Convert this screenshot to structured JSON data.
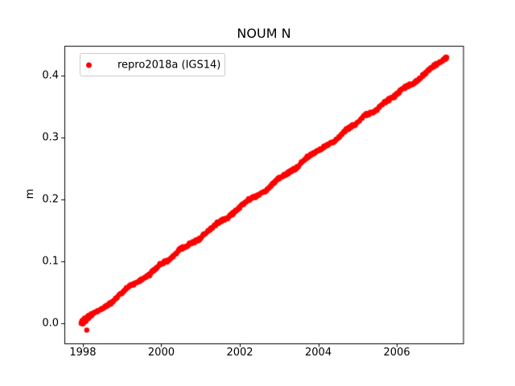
{
  "figure": {
    "background": "#ffffff",
    "frame_color": "#000000",
    "text_color": "#000000"
  },
  "chart_data": {
    "type": "scatter",
    "title": "NOUM N",
    "xlabel": "",
    "ylabel": "m",
    "legend": {
      "label": "repro2018a (IGS14)",
      "marker": "dot-icon",
      "marker_color": "#ff0000",
      "position": "upper-left",
      "border_color": "#cccccc"
    },
    "axes": {
      "xlim": [
        1997.53,
        2007.7
      ],
      "ylim": [
        -0.033,
        0.447
      ],
      "xticks": [
        1998,
        2000,
        2002,
        2004,
        2006
      ],
      "xtick_labels": [
        "1998",
        "2000",
        "2002",
        "2004",
        "2006"
      ],
      "yticks": [
        0.0,
        0.1,
        0.2,
        0.3,
        0.4
      ],
      "ytick_labels": [
        "0.0",
        "0.1",
        "0.2",
        "0.3",
        "0.4"
      ],
      "grid": false
    },
    "series": [
      {
        "name": "repro2018a (IGS14)",
        "color": "#ff0000",
        "marker": "dot",
        "marker_radius_px": 2.7,
        "trend_m_per_yr": 0.046,
        "t_start": 1997.95,
        "t_end": 2007.28,
        "anchors_t": [
          1997.95,
          1998.2,
          1998.45,
          1998.7,
          1998.95,
          1999.2,
          1999.45,
          1999.7,
          1999.95,
          2000.2,
          2000.45,
          2000.7,
          2000.95,
          2001.2,
          2001.45,
          2001.7,
          2001.95,
          2002.2,
          2002.45,
          2002.7,
          2002.95,
          2003.2,
          2003.45,
          2003.7,
          2003.95,
          2004.2,
          2004.45,
          2004.7,
          2004.95,
          2005.2,
          2005.45,
          2005.7,
          2005.95,
          2006.2,
          2006.45,
          2006.7,
          2006.95,
          2007.2,
          2007.28
        ],
        "anchors_v": [
          0.0,
          0.0135,
          0.022,
          0.0315,
          0.047,
          0.0604,
          0.0689,
          0.0784,
          0.0939,
          0.1024,
          0.1179,
          0.1274,
          0.1349,
          0.1493,
          0.1628,
          0.1703,
          0.1848,
          0.1983,
          0.2058,
          0.2153,
          0.2318,
          0.2412,
          0.2507,
          0.2672,
          0.2767,
          0.2862,
          0.2957,
          0.3122,
          0.3217,
          0.3361,
          0.3426,
          0.3571,
          0.3666,
          0.3811,
          0.3876,
          0.4021,
          0.4156,
          0.426,
          0.4287
        ],
        "outliers": [
          [
            1998.1,
            -0.011
          ]
        ]
      }
    ]
  }
}
